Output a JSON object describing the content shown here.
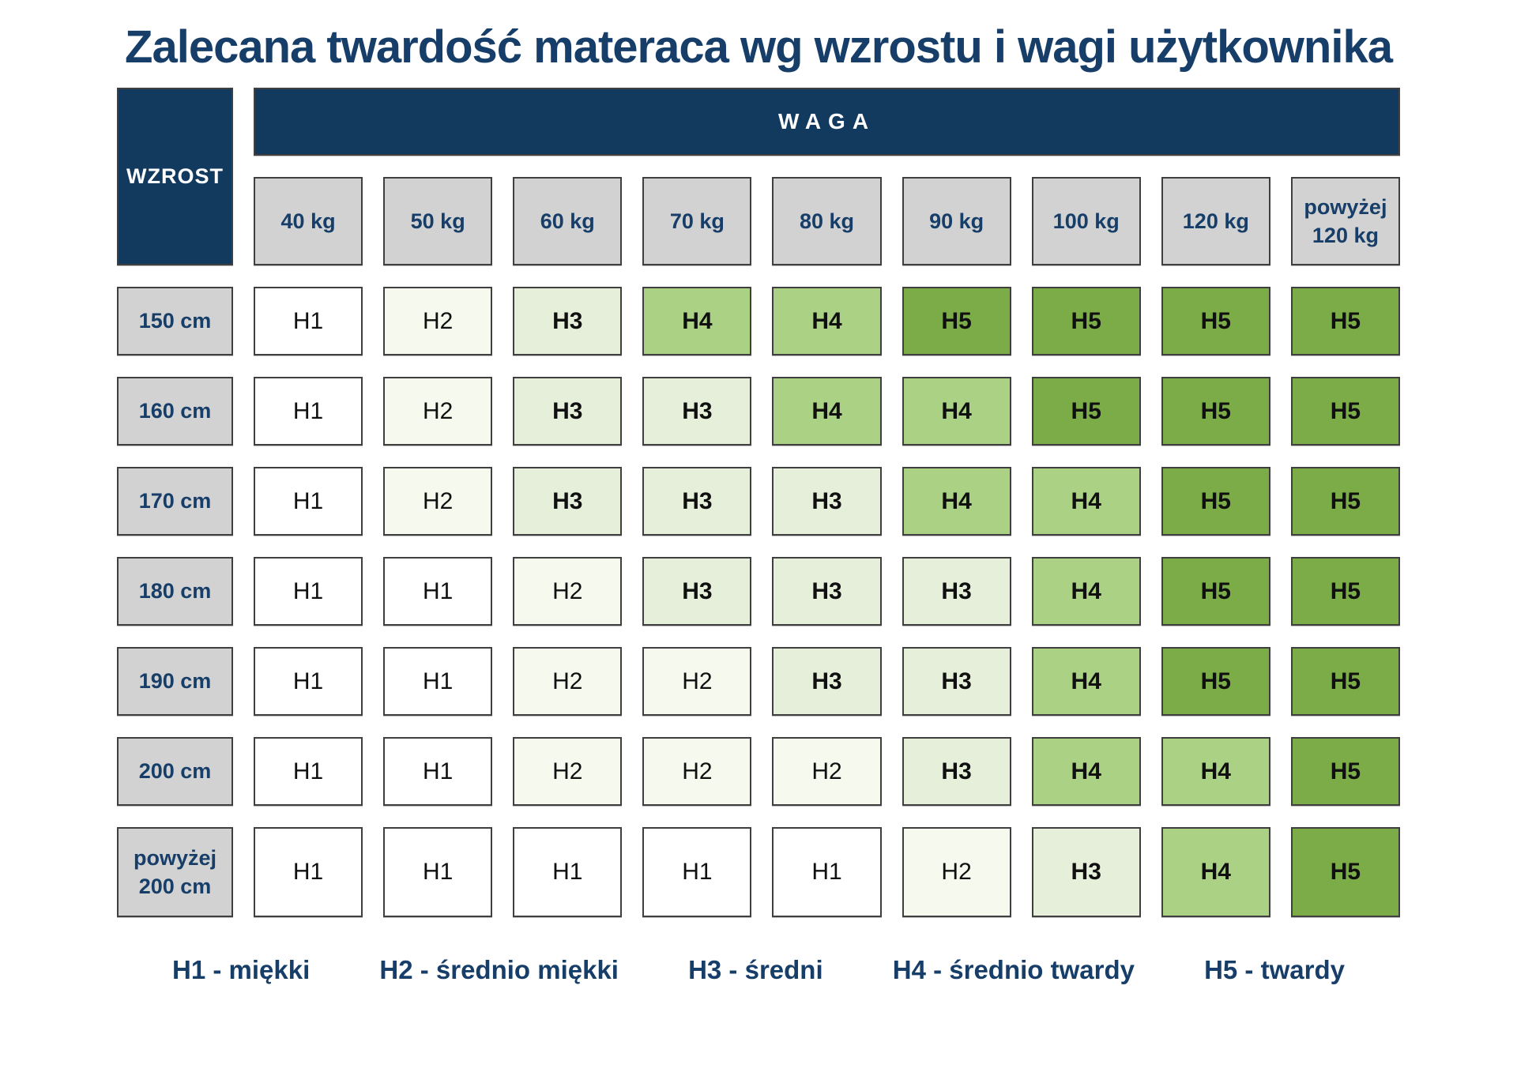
{
  "title": "Zalecana twardość materaca wg wzrostu i wagi użytkownika",
  "table": {
    "corner_label": "WZROST",
    "weight_axis_label": "WAGA",
    "weight_columns": [
      "40 kg",
      "50 kg",
      "60 kg",
      "70 kg",
      "80 kg",
      "90 kg",
      "100 kg",
      "120 kg",
      "powyżej\n120 kg"
    ],
    "rows": [
      {
        "height": "150 cm",
        "values": [
          "H1",
          "H2",
          "H3",
          "H4",
          "H4",
          "H5",
          "H5",
          "H5",
          "H5"
        ]
      },
      {
        "height": "160 cm",
        "values": [
          "H1",
          "H2",
          "H3",
          "H3",
          "H4",
          "H4",
          "H5",
          "H5",
          "H5"
        ]
      },
      {
        "height": "170 cm",
        "values": [
          "H1",
          "H2",
          "H3",
          "H3",
          "H3",
          "H4",
          "H4",
          "H5",
          "H5"
        ]
      },
      {
        "height": "180 cm",
        "values": [
          "H1",
          "H1",
          "H2",
          "H3",
          "H3",
          "H3",
          "H4",
          "H5",
          "H5"
        ]
      },
      {
        "height": "190 cm",
        "values": [
          "H1",
          "H1",
          "H2",
          "H2",
          "H3",
          "H3",
          "H4",
          "H5",
          "H5"
        ]
      },
      {
        "height": "200 cm",
        "values": [
          "H1",
          "H1",
          "H2",
          "H2",
          "H2",
          "H3",
          "H4",
          "H4",
          "H5"
        ]
      },
      {
        "height": "powyżej\n200 cm",
        "values": [
          "H1",
          "H1",
          "H1",
          "H1",
          "H1",
          "H2",
          "H3",
          "H4",
          "H5"
        ]
      }
    ]
  },
  "legend": [
    {
      "label": "H1 - miękki"
    },
    {
      "label": "H2 - średnio miękki"
    },
    {
      "label": "H3 - średni"
    },
    {
      "label": "H4 - średnio twardy"
    },
    {
      "label": "H5 - twardy"
    }
  ],
  "colors": {
    "navy": "#123A5E",
    "navy_text": "#163E69",
    "gray_cell": "#D2D2D2",
    "cell_border": "#3F3F3F",
    "H1": "#FFFFFF",
    "H2": "#F5F9EE",
    "H3": "#E6EFD9",
    "H4": "#ABD284",
    "H5": "#7BAC47"
  },
  "chart_data": {
    "type": "heatmap",
    "title": "Zalecana twardość materaca wg wzrostu i wagi użytkownika",
    "xlabel": "WAGA",
    "ylabel": "WZROST",
    "x_categories": [
      "40 kg",
      "50 kg",
      "60 kg",
      "70 kg",
      "80 kg",
      "90 kg",
      "100 kg",
      "120 kg",
      "powyżej 120 kg"
    ],
    "y_categories": [
      "150 cm",
      "160 cm",
      "170 cm",
      "180 cm",
      "190 cm",
      "200 cm",
      "powyżej 200 cm"
    ],
    "values": [
      [
        "H1",
        "H2",
        "H3",
        "H4",
        "H4",
        "H5",
        "H5",
        "H5",
        "H5"
      ],
      [
        "H1",
        "H2",
        "H3",
        "H3",
        "H4",
        "H4",
        "H5",
        "H5",
        "H5"
      ],
      [
        "H1",
        "H2",
        "H3",
        "H3",
        "H3",
        "H4",
        "H4",
        "H5",
        "H5"
      ],
      [
        "H1",
        "H1",
        "H2",
        "H3",
        "H3",
        "H3",
        "H4",
        "H5",
        "H5"
      ],
      [
        "H1",
        "H1",
        "H2",
        "H2",
        "H3",
        "H3",
        "H4",
        "H5",
        "H5"
      ],
      [
        "H1",
        "H1",
        "H2",
        "H2",
        "H2",
        "H3",
        "H4",
        "H4",
        "H5"
      ],
      [
        "H1",
        "H1",
        "H1",
        "H1",
        "H1",
        "H2",
        "H3",
        "H4",
        "H5"
      ]
    ],
    "legend_entries": [
      "H1 - miękki",
      "H2 - średnio miękki",
      "H3 - średni",
      "H4 - średnio twardy",
      "H5 - twardy"
    ],
    "color_scale": {
      "H1": "#FFFFFF",
      "H2": "#F5F9EE",
      "H3": "#E6EFD9",
      "H4": "#ABD284",
      "H5": "#7BAC47"
    },
    "legend_position": "bottom",
    "grid": false
  }
}
